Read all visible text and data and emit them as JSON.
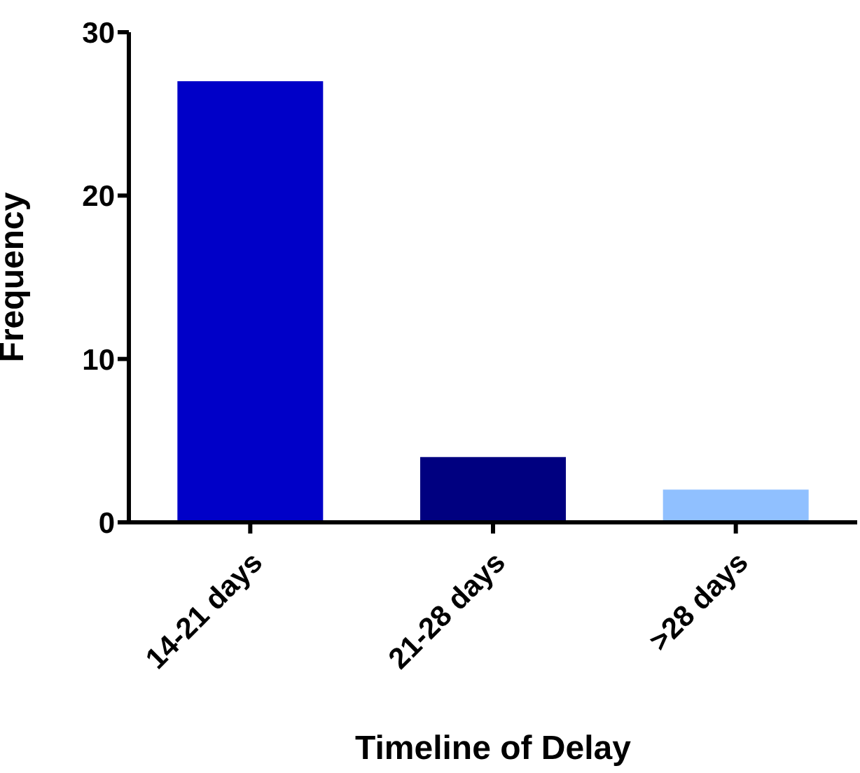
{
  "chart_data": {
    "type": "bar",
    "xlabel": "Timeline of Delay",
    "ylabel": "Frequency",
    "categories": [
      "14-21 days",
      "21-28 days",
      ">28 days"
    ],
    "values": [
      27,
      4,
      2
    ],
    "colors": [
      "#0000c8",
      "#000080",
      "#90c0ff"
    ],
    "ylim": [
      0,
      30
    ],
    "yticks": [
      0,
      10,
      20,
      30
    ],
    "grid": false,
    "legend": false
  }
}
